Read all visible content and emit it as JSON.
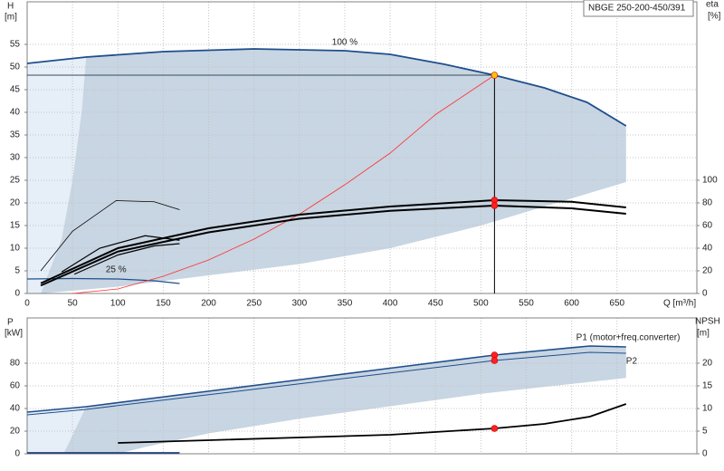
{
  "chart_data": [
    {
      "type": "line",
      "title": "NBGE 250-200-450/391",
      "ylabel": "H",
      "yunit": "[m]",
      "y2label": "eta",
      "y2unit": "[%]",
      "xlabel": "Q [m³/h]",
      "xlim": [
        0,
        738
      ],
      "xticks": [
        0,
        50,
        100,
        150,
        200,
        250,
        300,
        350,
        400,
        450,
        500,
        550,
        600,
        650
      ],
      "ylim": [
        0,
        64.4
      ],
      "yticks": [
        0,
        5,
        10,
        15,
        20,
        25,
        30,
        35,
        40,
        45,
        50,
        55
      ],
      "y2lim": [
        0,
        257.6
      ],
      "y2ticks": [
        0,
        20,
        40,
        60,
        80,
        100
      ],
      "grid": true,
      "guide_lines": true,
      "operating_x": 515,
      "regions": [
        {
          "color": "#e6eef8",
          "x": [
            0,
            0,
            65,
            60,
            50,
            38,
            15
          ],
          "values": [
            0,
            50.8,
            52.2,
            40,
            25,
            12,
            0
          ]
        },
        {
          "color": "#c8d5e2",
          "x": [
            65,
            150,
            250,
            350,
            400,
            460,
            515,
            570,
            617,
            660,
            660,
            600,
            500,
            400,
            300,
            200,
            100,
            15,
            38,
            50,
            60
          ],
          "values": [
            52.2,
            53.4,
            54,
            53.6,
            52.8,
            50.6,
            48.2,
            45.4,
            42.2,
            37,
            24.6,
            21,
            15,
            10,
            6.5,
            4,
            1.5,
            0,
            12,
            25,
            40
          ]
        }
      ],
      "series": [
        {
          "name": "100 %",
          "color": "#1f4e8c",
          "marker_color": "#ffc000",
          "x": [
            0,
            65,
            150,
            250,
            350,
            400,
            460,
            515,
            570,
            617,
            660
          ],
          "values": [
            50.8,
            52.2,
            53.4,
            54,
            53.6,
            52.8,
            50.6,
            48.2,
            45.4,
            42.2,
            37
          ]
        },
        {
          "name": "25 %",
          "color": "#1f4e8c",
          "x": [
            0,
            50,
            100,
            140,
            168
          ],
          "values": [
            3.2,
            3.3,
            3.2,
            2.8,
            2.2
          ]
        },
        {
          "color": "#ff3030",
          "x": [
            50,
            100,
            150,
            200,
            250,
            300,
            350,
            400,
            450,
            515
          ],
          "values": [
            0,
            1,
            3.8,
            7.4,
            12,
            17.5,
            24,
            31,
            39.5,
            48.2
          ]
        },
        {
          "color": "#000000",
          "axis": "y2",
          "marker_color": "#ff2020",
          "x": [
            15,
            100,
            200,
            300,
            400,
            515,
            600,
            660
          ],
          "values": [
            9,
            40,
            57.6,
            69.6,
            76.8,
            82.4,
            81,
            76
          ]
        },
        {
          "color": "#000000",
          "axis": "y2",
          "marker_color": "#ff2020",
          "x": [
            15,
            100,
            200,
            300,
            400,
            515,
            600,
            660
          ],
          "values": [
            7,
            37,
            54,
            66,
            73,
            77.6,
            75.2,
            70.4
          ]
        },
        {
          "color": "#000000",
          "axis": "y2",
          "x": [
            15,
            50,
            98,
            140,
            168
          ],
          "values": [
            20,
            55,
            82,
            81,
            74
          ]
        },
        {
          "color": "#000000",
          "axis": "y2",
          "x": [
            38,
            80,
            130,
            168
          ],
          "values": [
            19,
            40,
            51,
            47
          ]
        },
        {
          "color": "#000000",
          "axis": "y2",
          "x": [
            52,
            100,
            140,
            168
          ],
          "values": [
            17,
            34,
            42,
            44
          ]
        }
      ]
    },
    {
      "type": "line",
      "ylabel": "P",
      "yunit": "[kW]",
      "y2label": "NPSH",
      "y2unit": "[m]",
      "xlim": [
        0,
        738
      ],
      "xticks": [
        0,
        50,
        100,
        150,
        200,
        250,
        300,
        350,
        400,
        450,
        500,
        550,
        600,
        650
      ],
      "ylim": [
        0,
        120
      ],
      "yticks": [
        0,
        20,
        40,
        60,
        80
      ],
      "y2lim": [
        0,
        30
      ],
      "y2ticks": [
        0,
        5,
        10,
        15,
        20
      ],
      "grid": true,
      "guide_lines": false,
      "operating_x": 515,
      "regions": [
        {
          "color": "#e6eef8",
          "x": [
            0,
            0,
            65,
            55,
            45,
            40
          ],
          "values": [
            0,
            36.8,
            41.6,
            25,
            8,
            0
          ]
        },
        {
          "color": "#c8d5e2",
          "x": [
            65,
            200,
            300,
            400,
            515,
            620,
            660,
            660,
            500,
            400,
            300,
            200,
            130,
            100,
            40,
            45,
            55
          ],
          "values": [
            41.6,
            55.3,
            65.4,
            75.6,
            87.2,
            95.2,
            94.4,
            67,
            53,
            42,
            31,
            18,
            6,
            0,
            0,
            8,
            25
          ]
        }
      ],
      "series": [
        {
          "name": "P1 (motor+freq.converter)",
          "color": "#1f4e8c",
          "marker_color": "#ff2020",
          "x": [
            0,
            65,
            200,
            300,
            400,
            515,
            620,
            660
          ],
          "values": [
            36.8,
            41.6,
            55.3,
            65.4,
            75.6,
            87.2,
            95.2,
            94.4
          ]
        },
        {
          "name": "P2",
          "color": "#1f4e8c",
          "marker_color": "#ff2020",
          "x": [
            0,
            65,
            200,
            300,
            400,
            515,
            620,
            660
          ],
          "values": [
            34.4,
            39.2,
            52.2,
            61.8,
            71.4,
            82.4,
            89.6,
            88.8
          ]
        },
        {
          "color": "#000000",
          "axis": "y2",
          "marker_color": "#ff2020",
          "x": [
            100,
            200,
            300,
            400,
            515,
            570,
            620,
            660
          ],
          "values": [
            2.4,
            3,
            3.6,
            4.2,
            5.6,
            6.6,
            8.2,
            11
          ]
        },
        {
          "color": "#1f3f7a",
          "x": [
            0,
            168
          ],
          "values": [
            0.8,
            0.8
          ]
        }
      ]
    }
  ]
}
